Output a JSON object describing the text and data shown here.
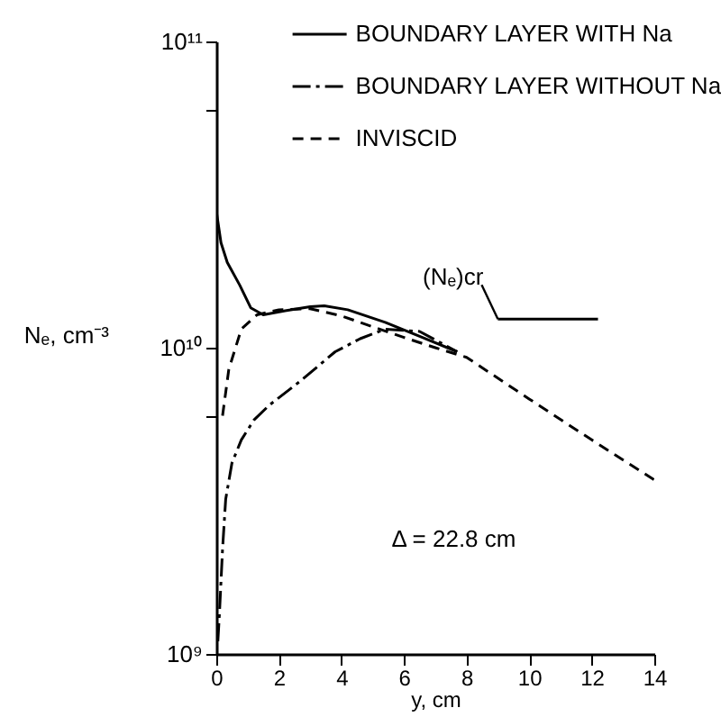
{
  "chart_data": {
    "type": "line",
    "xlabel": "y, cm",
    "ylabel": "Nₑ, cm⁻³",
    "log": "y",
    "xlim": [
      0,
      14
    ],
    "xticks": [
      0,
      2,
      4,
      6,
      8,
      10,
      12,
      14
    ],
    "ylim": [
      1000000000.0,
      100000000000.0
    ],
    "yticks": [
      {
        "value": 1000000000.0,
        "label": "10⁹"
      },
      {
        "value": 6000000000.0,
        "label": null
      },
      {
        "value": 10000000000.0,
        "label": "10¹⁰"
      },
      {
        "value": 60000000000.0,
        "label": null
      },
      {
        "value": 100000000000.0,
        "label": "10¹¹"
      }
    ],
    "grid": false,
    "legend": "top right",
    "marker": "none",
    "series": [
      {
        "name": "BOUNDARY LAYER WITH Na",
        "color": "#000000",
        "line_style": "solid",
        "x": [
          0,
          0.15,
          0.35,
          0.75,
          1.1,
          1.5,
          2.2,
          3.0,
          3.45,
          4.2,
          5.4,
          6.5,
          7.7
        ],
        "values": [
          28000000000.0,
          22000000000.0,
          19000000000.0,
          16000000000.0,
          13500000000.0,
          12800000000.0,
          13200000000.0,
          13600000000.0,
          13700000000.0,
          13300000000.0,
          12100000000.0,
          10900000000.0,
          9700000000.0
        ]
      },
      {
        "name": "BOUNDARY LAYER WITHOUT Na",
        "color": "#000000",
        "line_style": "dashdot",
        "x": [
          0.05,
          0.1,
          0.2,
          0.3,
          0.5,
          0.8,
          1.2,
          1.7,
          2.7,
          3.8,
          4.6,
          5.4,
          6.5,
          7.7
        ],
        "values": [
          1100000000.0,
          1350000000.0,
          2200000000.0,
          3200000000.0,
          4200000000.0,
          5000000000.0,
          5800000000.0,
          6500000000.0,
          7800000000.0,
          9700000000.0,
          10700000000.0,
          11500000000.0,
          11300000000.0,
          9700000000.0
        ]
      },
      {
        "name": "INVISCID",
        "color": "#000000",
        "line_style": "dashed",
        "x": [
          0.2,
          0.4,
          0.8,
          1.3,
          2,
          3,
          4,
          5,
          6,
          7,
          8,
          10,
          12,
          14
        ],
        "values": [
          6000000000.0,
          8500000000.0,
          11500000000.0,
          12800000000.0,
          13300000000.0,
          13400000000.0,
          12700000000.0,
          11700000000.0,
          10800000000.0,
          10000000000.0,
          9300000000.0,
          6800000000.0,
          5000000000.0,
          3700000000.0
        ]
      },
      {
        "color": "#000000",
        "line_style": "solid",
        "x": [
          9.0,
          12.2
        ],
        "values": [
          12400000000.0,
          12400000000.0
        ]
      }
    ],
    "annotations": [
      {
        "text": "(Nₑ)cr",
        "x": 9.0,
        "y": 12400000000.0
      },
      "Δ = 22.8 cm"
    ]
  }
}
